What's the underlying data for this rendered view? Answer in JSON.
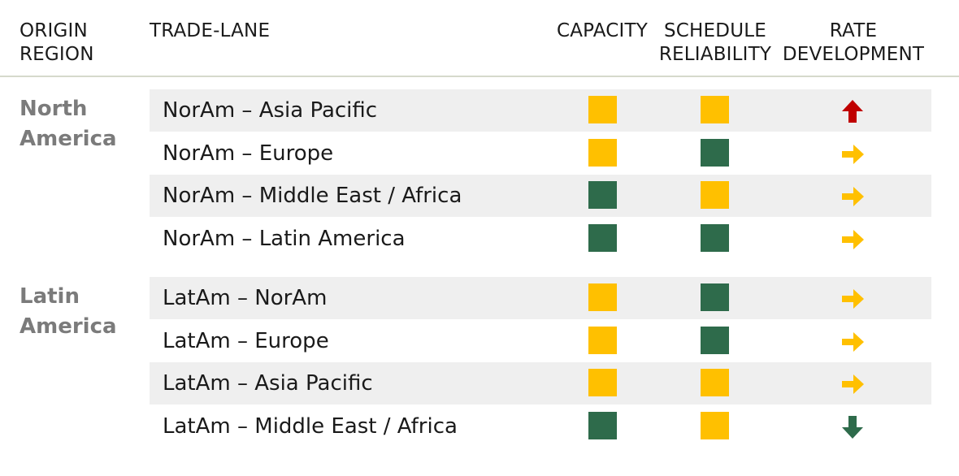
{
  "chart_data": {
    "type": "table",
    "columns": [
      "ORIGIN REGION",
      "TRADE-LANE",
      "CAPACITY",
      "SCHEDULE RELIABILITY",
      "RATE DEVELOPMENT"
    ],
    "header": {
      "origin": [
        "ORIGIN",
        "REGION"
      ],
      "lane": [
        "TRADE-LANE"
      ],
      "capacity": [
        "CAPACITY"
      ],
      "schedule": [
        "SCHEDULE",
        "RELIABILITY"
      ],
      "rate": [
        "RATE",
        "DEVELOPMENT"
      ]
    },
    "colors": {
      "yellow": "#ffc000",
      "green": "#2e6b4b",
      "red": "#c00000",
      "shade": "#efefef"
    },
    "regions": [
      {
        "name": [
          "North",
          "America"
        ],
        "rows": [
          {
            "lane": "NorAm – Asia Pacific",
            "capacity": "yellow",
            "schedule": "yellow",
            "rate": "up"
          },
          {
            "lane": "NorAm – Europe",
            "capacity": "yellow",
            "schedule": "green",
            "rate": "flat"
          },
          {
            "lane": "NorAm – Middle East / Africa",
            "capacity": "green",
            "schedule": "yellow",
            "rate": "flat"
          },
          {
            "lane": "NorAm – Latin America",
            "capacity": "green",
            "schedule": "green",
            "rate": "flat"
          }
        ]
      },
      {
        "name": [
          "Latin",
          "America"
        ],
        "rows": [
          {
            "lane": "LatAm – NorAm",
            "capacity": "yellow",
            "schedule": "green",
            "rate": "flat"
          },
          {
            "lane": "LatAm – Europe",
            "capacity": "yellow",
            "schedule": "green",
            "rate": "flat"
          },
          {
            "lane": "LatAm – Asia Pacific",
            "capacity": "yellow",
            "schedule": "yellow",
            "rate": "flat"
          },
          {
            "lane": "LatAm – Middle East / Africa",
            "capacity": "green",
            "schedule": "yellow",
            "rate": "down"
          }
        ]
      }
    ]
  }
}
